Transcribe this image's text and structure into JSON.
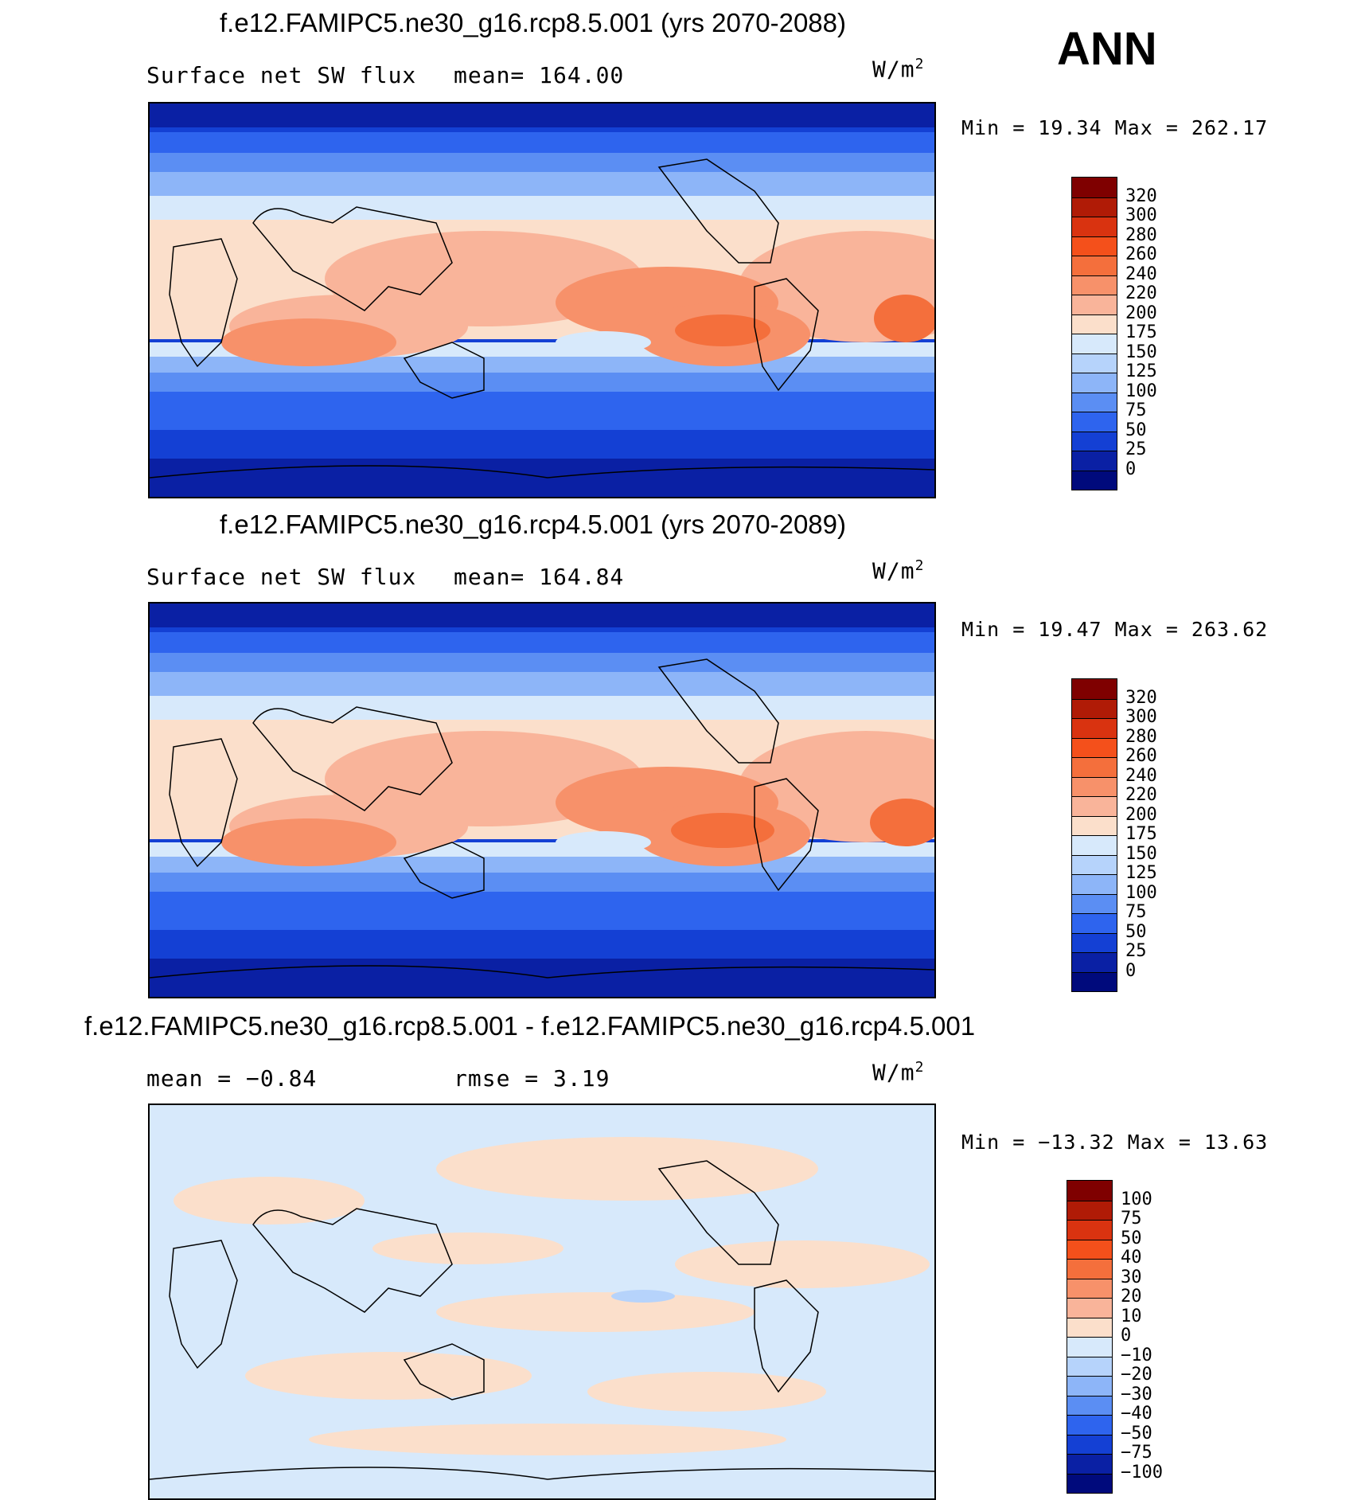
{
  "season": "ANN",
  "panels": [
    {
      "title": "f.e12.FAMIPC5.ne30_g16.rcp8.5.001 (yrs 2070-2088)",
      "left_text": "Surface net SW flux",
      "center_text": "mean=  164.00",
      "units": "W/m",
      "units_sup": "2",
      "minmax": "Min =   19.34 Max =  262.17",
      "colorbar": {
        "labels": [
          "320",
          "300",
          "280",
          "260",
          "240",
          "220",
          "200",
          "175",
          "150",
          "125",
          "100",
          "75",
          "50",
          "25",
          "0"
        ],
        "colors": [
          "#7f0000",
          "#b01b06",
          "#d93310",
          "#f4501b",
          "#f46f3c",
          "#f7916a",
          "#f9b49a",
          "#fbdfcb",
          "#d7e9fb",
          "#b6d3fb",
          "#8db5f8",
          "#5b8ef3",
          "#2e64ee",
          "#1440d4",
          "#0a20a4",
          "#000a7c"
        ]
      }
    },
    {
      "title": "f.e12.FAMIPC5.ne30_g16.rcp4.5.001 (yrs 2070-2089)",
      "left_text": "Surface net SW flux",
      "center_text": "mean=  164.84",
      "units": "W/m",
      "units_sup": "2",
      "minmax": "Min =   19.47 Max =  263.62",
      "colorbar": {
        "labels": [
          "320",
          "300",
          "280",
          "260",
          "240",
          "220",
          "200",
          "175",
          "150",
          "125",
          "100",
          "75",
          "50",
          "25",
          "0"
        ],
        "colors": [
          "#7f0000",
          "#b01b06",
          "#d93310",
          "#f4501b",
          "#f46f3c",
          "#f7916a",
          "#f9b49a",
          "#fbdfcb",
          "#d7e9fb",
          "#b6d3fb",
          "#8db5f8",
          "#5b8ef3",
          "#2e64ee",
          "#1440d4",
          "#0a20a4",
          "#000a7c"
        ]
      }
    },
    {
      "title": "f.e12.FAMIPC5.ne30_g16.rcp8.5.001 - f.e12.FAMIPC5.ne30_g16.rcp4.5.001",
      "left_text": "mean =   −0.84",
      "center_text": "rmse =    3.19",
      "units": "W/m",
      "units_sup": "2",
      "minmax": "Min = −13.32 Max =   13.63",
      "colorbar": {
        "labels": [
          "100",
          "75",
          "50",
          "40",
          "30",
          "20",
          "10",
          "0",
          "−10",
          "−20",
          "−30",
          "−40",
          "−50",
          "−75",
          "−100"
        ],
        "colors": [
          "#7f0000",
          "#b01b06",
          "#d93310",
          "#f4501b",
          "#f46f3c",
          "#f7916a",
          "#f9b49a",
          "#fbdfcb",
          "#d7e9fb",
          "#b6d3fb",
          "#8db5f8",
          "#5b8ef3",
          "#2e64ee",
          "#1440d4",
          "#0a20a4",
          "#000a7c"
        ]
      }
    }
  ]
}
